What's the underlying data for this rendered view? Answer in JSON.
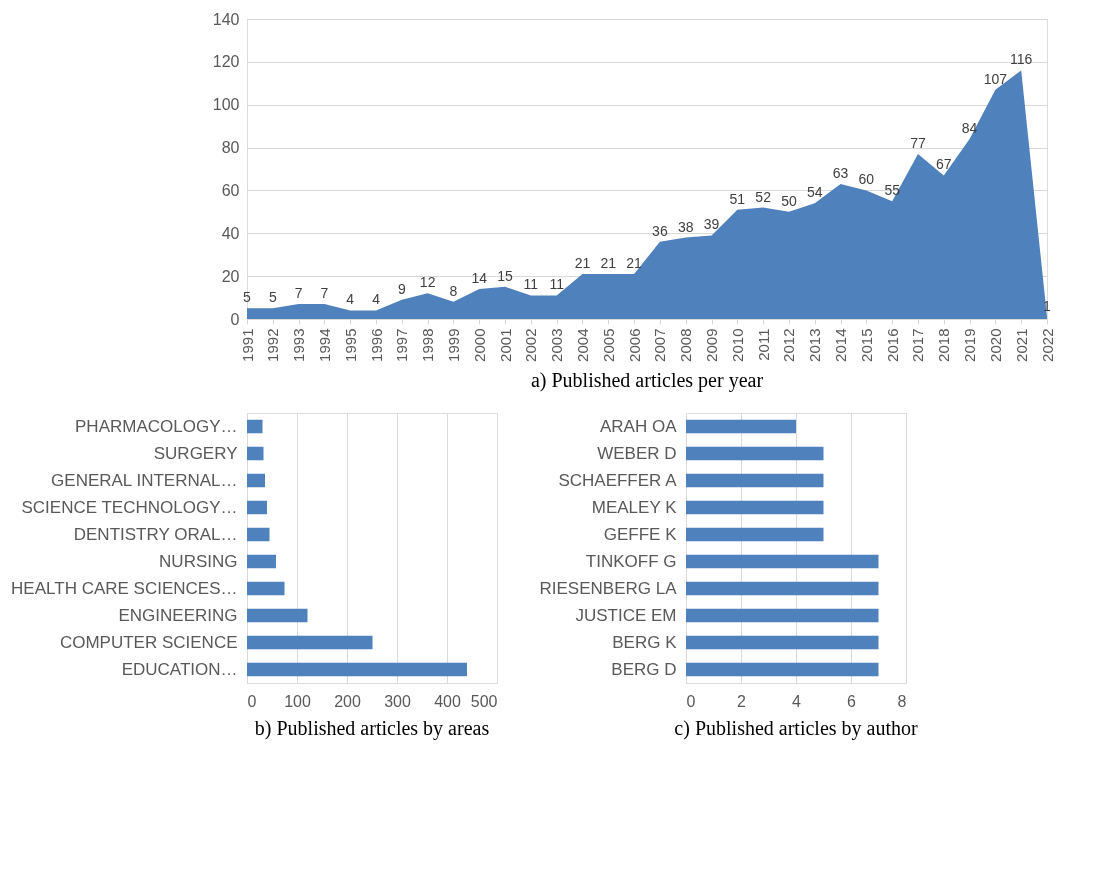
{
  "chart_data": [
    {
      "type": "area",
      "title": "a) Published articles per year",
      "categories": [
        "1991",
        "1992",
        "1993",
        "1994",
        "1995",
        "1996",
        "1997",
        "1998",
        "1999",
        "2000",
        "2001",
        "2002",
        "2003",
        "2004",
        "2005",
        "2006",
        "2007",
        "2008",
        "2009",
        "2010",
        "2011",
        "2012",
        "2013",
        "2014",
        "2015",
        "2016",
        "2017",
        "2018",
        "2019",
        "2020",
        "2021",
        "2022"
      ],
      "values": [
        5,
        5,
        7,
        7,
        4,
        4,
        9,
        12,
        8,
        14,
        15,
        11,
        11,
        21,
        21,
        21,
        36,
        38,
        39,
        51,
        52,
        50,
        54,
        63,
        60,
        55,
        77,
        67,
        84,
        107,
        116,
        1
      ],
      "color": "#4f81bd",
      "ylim": [
        0,
        140
      ],
      "yticks": [
        0,
        20,
        40,
        60,
        80,
        100,
        120,
        140
      ],
      "grid": "y",
      "data_labels": true
    },
    {
      "type": "bar",
      "orientation": "horizontal",
      "title": "b) Published articles by areas",
      "categories": [
        "PHARMACOLOGY…",
        "SURGERY",
        "GENERAL INTERNAL…",
        "SCIENCE TECHNOLOGY…",
        "DENTISTRY ORAL…",
        "NURSING",
        "HEALTH CARE SCIENCES…",
        "ENGINEERING",
        "COMPUTER SCIENCE",
        "EDUCATION…"
      ],
      "values": [
        31,
        33,
        36,
        40,
        45,
        58,
        75,
        121,
        251,
        440
      ],
      "color": "#4f81bd",
      "xlim": [
        0,
        500
      ],
      "xticks": [
        0,
        100,
        200,
        300,
        400,
        500
      ],
      "grid": "x"
    },
    {
      "type": "bar",
      "orientation": "horizontal",
      "title": "c) Published articles by author",
      "categories": [
        "ARAH OA",
        "WEBER D",
        "SCHAEFFER A",
        "MEALEY K",
        "GEFFE K",
        "TINKOFF G",
        "RIESENBERG LA",
        "JUSTICE EM",
        "BERG K",
        "BERG D"
      ],
      "values": [
        4,
        5,
        5,
        5,
        5,
        7,
        7,
        7,
        7,
        7
      ],
      "color": "#4f81bd",
      "xlim": [
        0,
        8
      ],
      "xticks": [
        0,
        2,
        4,
        6,
        8
      ],
      "grid": "x"
    }
  ]
}
